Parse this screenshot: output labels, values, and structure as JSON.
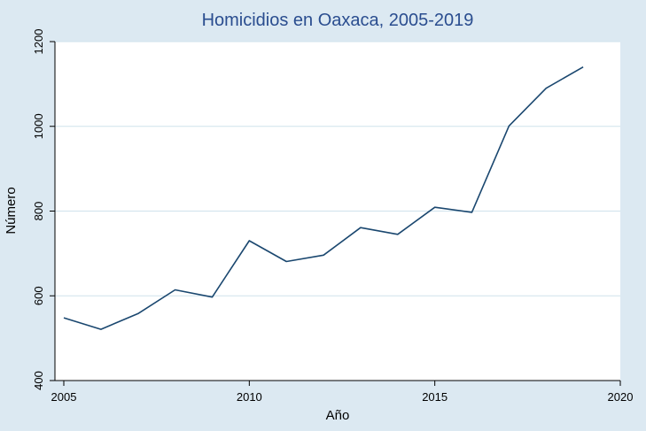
{
  "chart_data": {
    "type": "line",
    "title": "Homicidios en Oaxaca, 2005-2019",
    "xlabel": "Año",
    "ylabel": "Número",
    "x": [
      2005,
      2006,
      2007,
      2008,
      2009,
      2010,
      2011,
      2012,
      2013,
      2014,
      2015,
      2016,
      2017,
      2018,
      2019
    ],
    "values": [
      548,
      521,
      558,
      614,
      597,
      730,
      681,
      696,
      761,
      745,
      809,
      797,
      1001,
      1090,
      1140
    ],
    "series_name": "Homicidios",
    "xlim": [
      2005,
      2020
    ],
    "ylim": [
      400,
      1200
    ],
    "xticks": [
      2005,
      2010,
      2015,
      2020
    ],
    "yticks": [
      400,
      600,
      800,
      1000,
      1200
    ],
    "grid": "horizontal",
    "legend": "none",
    "colors": {
      "line": "#1a476f",
      "figure_background": "#dce9f2",
      "plot_background": "#ffffff",
      "grid": "#cfe2ec",
      "axis": "#000000",
      "title": "#2a4d8f",
      "tick_text": "#000000"
    }
  }
}
